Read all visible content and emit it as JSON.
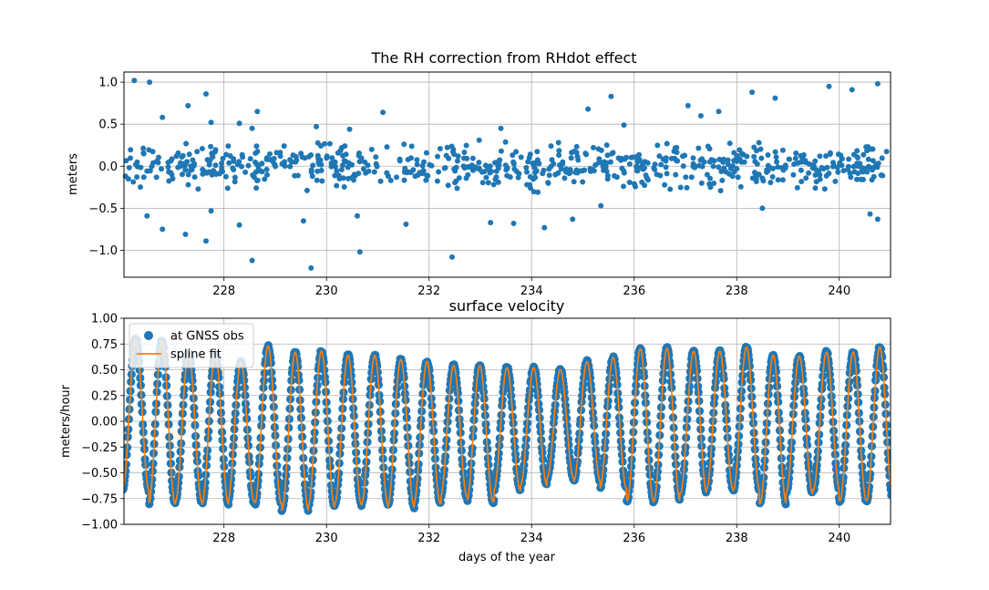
{
  "chart_data": [
    {
      "type": "scatter",
      "title": "The RH correction from RHdot effect",
      "xlabel": "",
      "ylabel": "meters",
      "xlim": [
        226.05,
        241.0
      ],
      "ylim": [
        -1.32,
        1.12
      ],
      "xticks": [
        228,
        230,
        232,
        234,
        236,
        238,
        240
      ],
      "xtick_labels": [
        "228",
        "230",
        "232",
        "234",
        "236",
        "238",
        "240"
      ],
      "yticks": [
        -1.0,
        -0.5,
        0.0,
        0.5,
        1.0
      ],
      "ytick_labels": [
        "−1.0",
        "−0.5",
        "0.0",
        "0.5",
        "1.0"
      ],
      "grid": true,
      "series": [
        {
          "name": "",
          "color": "#1f77b4",
          "x": [
            226.25,
            226.55,
            226.8,
            227.3,
            227.65,
            227.75,
            228.3,
            228.55,
            228.65,
            229.8,
            230.45,
            231.1,
            233.4,
            235.1,
            235.55,
            235.8,
            237.05,
            237.3,
            237.65,
            238.3,
            238.75,
            239.8,
            240.25,
            240.75,
            226.5,
            226.8,
            227.25,
            227.65,
            227.75,
            228.3,
            228.55,
            229.55,
            229.7,
            230.6,
            230.65,
            231.55,
            232.45,
            233.2,
            233.65,
            234.25,
            234.8,
            235.35,
            238.5,
            240.6,
            240.75
          ],
          "y": [
            1.02,
            1.0,
            0.58,
            0.72,
            0.86,
            0.52,
            0.51,
            0.45,
            0.65,
            0.47,
            0.44,
            0.64,
            0.45,
            0.68,
            0.83,
            0.49,
            0.72,
            0.6,
            0.65,
            0.88,
            0.81,
            0.95,
            0.91,
            0.98,
            -0.59,
            -0.75,
            -0.81,
            -0.89,
            -0.53,
            -0.7,
            -1.12,
            -0.65,
            -1.21,
            -0.59,
            -1.02,
            -0.69,
            -1.08,
            -0.67,
            -0.68,
            -0.73,
            -0.63,
            -0.47,
            -0.5,
            -0.57,
            -0.63
          ],
          "dense_band": {
            "x_range": [
              226.05,
              241.0
            ],
            "y_range": [
              -0.4,
              0.4
            ],
            "note": "roughly 700 points, mostly within ±0.35 m"
          }
        }
      ]
    },
    {
      "type": "line",
      "title": "surface velocity",
      "xlabel": "days of the year",
      "ylabel": "meters/hour",
      "xlim": [
        226.05,
        241.0
      ],
      "ylim": [
        -1.0,
        1.0
      ],
      "xticks": [
        228,
        230,
        232,
        234,
        236,
        238,
        240
      ],
      "xtick_labels": [
        "228",
        "230",
        "232",
        "234",
        "236",
        "238",
        "240"
      ],
      "yticks": [
        -1.0,
        -0.75,
        -0.5,
        -0.25,
        0.0,
        0.25,
        0.5,
        0.75,
        1.0
      ],
      "ytick_labels": [
        "−1.00",
        "−0.75",
        "−0.50",
        "−0.25",
        "0.00",
        "0.25",
        "0.50",
        "0.75",
        "1.00"
      ],
      "grid": true,
      "legend": {
        "position": "top-left",
        "entries": [
          "at GNSS obs",
          "spline fit"
        ]
      },
      "series": [
        {
          "name": "at GNSS obs",
          "kind": "markers",
          "color": "#1f77b4"
        },
        {
          "name": "spline fit",
          "kind": "line",
          "color": "#ff7f0e"
        }
      ],
      "oscillation": {
        "period_days": 0.5175,
        "peak_days": [
          226.28,
          226.79,
          227.31,
          227.83,
          228.33,
          228.86,
          229.39,
          229.9,
          230.42,
          230.94,
          231.45,
          231.96,
          232.48,
          232.99,
          233.52,
          234.04,
          234.56,
          235.08,
          235.59,
          236.12,
          236.64,
          237.16,
          237.67,
          238.19,
          238.71,
          239.22,
          239.75,
          240.27,
          240.79
        ],
        "peak_values": [
          0.8,
          0.78,
          0.66,
          0.65,
          0.57,
          0.73,
          0.67,
          0.68,
          0.64,
          0.64,
          0.6,
          0.58,
          0.54,
          0.54,
          0.52,
          0.52,
          0.5,
          0.58,
          0.62,
          0.7,
          0.71,
          0.68,
          0.68,
          0.72,
          0.64,
          0.63,
          0.67,
          0.67,
          0.72
        ],
        "trough_values": [
          -0.67,
          -0.8,
          -0.78,
          -0.8,
          -0.78,
          -0.8,
          -0.86,
          -0.83,
          -0.8,
          -0.81,
          -0.83,
          -0.8,
          -0.73,
          -0.78,
          -0.67,
          -0.62,
          -0.55,
          -0.58,
          -0.65,
          -0.77,
          -0.78,
          -0.7,
          -0.66,
          -0.67,
          -0.8,
          -0.7,
          -0.67,
          -0.77,
          -0.77
        ]
      }
    }
  ]
}
